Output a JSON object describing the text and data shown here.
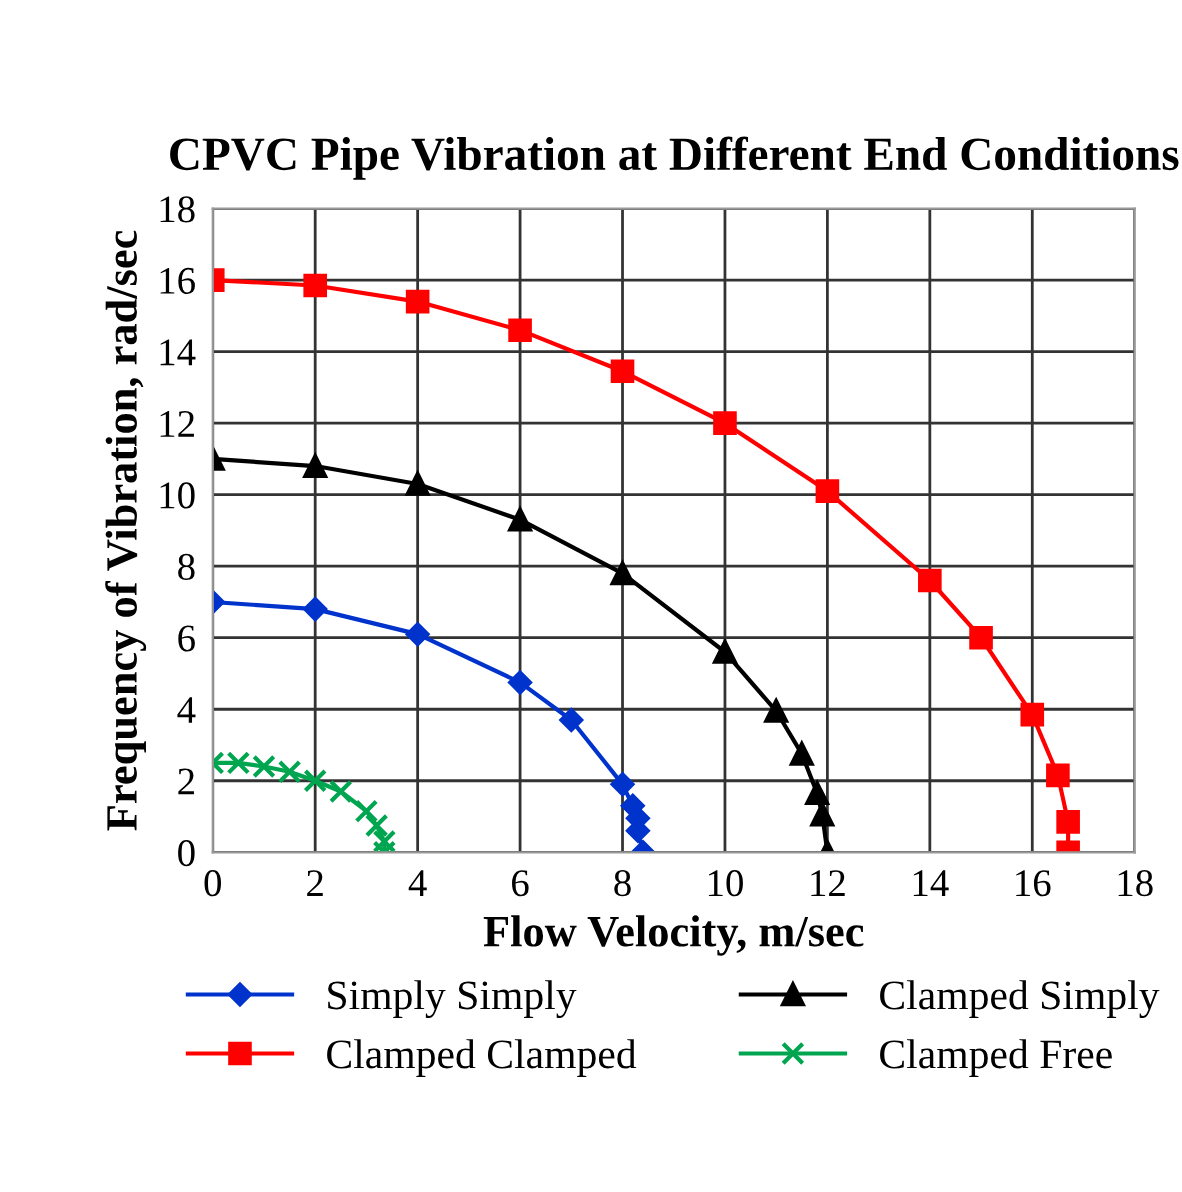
{
  "chart_data": {
    "type": "line",
    "title": "CPVC Pipe Vibration at Different End Conditions",
    "xlabel": "Flow Velocity, m/sec",
    "ylabel": "Frequency of Vibration, rad/sec",
    "xlim": [
      0,
      18
    ],
    "xticks": [
      0,
      2,
      4,
      6,
      8,
      10,
      12,
      14,
      16,
      18
    ],
    "ylim": [
      0,
      18
    ],
    "yticks": [
      0,
      2,
      4,
      6,
      8,
      10,
      12,
      14,
      16,
      18
    ],
    "grid": true,
    "legend": "bottom",
    "series": [
      {
        "name": "Simply Simply",
        "color": "#0033cc",
        "marker": "diamond",
        "x": [
          0,
          2,
          4,
          6,
          7,
          8,
          8.2,
          8.3,
          8.3,
          8.4
        ],
        "values": [
          7.0,
          6.8,
          6.1,
          4.75,
          3.7,
          1.9,
          1.3,
          0.95,
          0.6,
          0
        ]
      },
      {
        "name": "Clamped Clamped",
        "color": "#ff0000",
        "marker": "square",
        "x": [
          0,
          2,
          4,
          6,
          8,
          10,
          12,
          14,
          15,
          16,
          16.5,
          16.7,
          16.7
        ],
        "values": [
          16,
          15.85,
          15.4,
          14.6,
          13.45,
          12,
          10.1,
          7.6,
          6,
          3.85,
          2.15,
          0.85,
          0
        ]
      },
      {
        "name": "Clamped Simply",
        "color": "#000000",
        "marker": "triangle",
        "x": [
          0,
          2,
          4,
          6,
          8,
          10,
          11,
          11.5,
          11.8,
          11.9,
          12
        ],
        "values": [
          11,
          10.8,
          10.3,
          9.3,
          7.8,
          5.6,
          3.95,
          2.75,
          1.65,
          1.05,
          0
        ]
      },
      {
        "name": "Clamped Free",
        "color": "#00a550",
        "marker": "cross",
        "x": [
          0,
          0.5,
          1,
          1.5,
          2,
          2.5,
          3,
          3.2,
          3.35,
          3.35
        ],
        "values": [
          2.5,
          2.5,
          2.4,
          2.25,
          2.0,
          1.7,
          1.15,
          0.75,
          0.3,
          0
        ]
      }
    ]
  }
}
